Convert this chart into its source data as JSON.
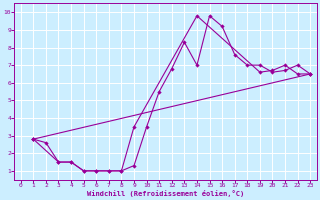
{
  "xlabel": "Windchill (Refroidissement éolien,°C)",
  "bg_color": "#cceeff",
  "line_color": "#990099",
  "grid_color": "#ffffff",
  "xlim": [
    -0.5,
    23.5
  ],
  "ylim": [
    0.5,
    10.5
  ],
  "xticks": [
    0,
    1,
    2,
    3,
    4,
    5,
    6,
    7,
    8,
    9,
    10,
    11,
    12,
    13,
    14,
    15,
    16,
    17,
    18,
    19,
    20,
    21,
    22,
    23
  ],
  "yticks": [
    1,
    2,
    3,
    4,
    5,
    6,
    7,
    8,
    9,
    10
  ],
  "line1_x": [
    1,
    2,
    3,
    4,
    5,
    6,
    7,
    8,
    9,
    10,
    11,
    12,
    13,
    14,
    15,
    16,
    17,
    18,
    19,
    20,
    21,
    22,
    23
  ],
  "line1_y": [
    2.8,
    2.6,
    1.5,
    1.5,
    1.0,
    1.0,
    1.0,
    1.0,
    1.3,
    3.5,
    5.5,
    6.8,
    8.3,
    7.0,
    9.8,
    9.2,
    7.6,
    7.0,
    7.0,
    6.6,
    6.7,
    7.0,
    6.5
  ],
  "line2_x": [
    1,
    3,
    4,
    5,
    6,
    7,
    8,
    9,
    14,
    19,
    20,
    21,
    22,
    23
  ],
  "line2_y": [
    2.8,
    1.5,
    1.5,
    1.0,
    1.0,
    1.0,
    1.0,
    3.5,
    9.8,
    6.6,
    6.7,
    7.0,
    6.5,
    6.5
  ],
  "line3_x": [
    1,
    23
  ],
  "line3_y": [
    2.8,
    6.5
  ]
}
